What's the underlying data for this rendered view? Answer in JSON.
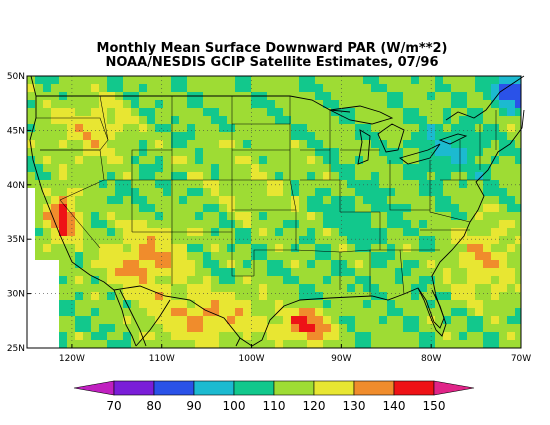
{
  "title": {
    "line1": "Monthly Mean Surface Downward PAR (W/m**2)",
    "line2": "NOAA/NESDIS GCIP Satellite Estimates, 07/96"
  },
  "map": {
    "lon_range": [
      -125,
      -70
    ],
    "lat_range": [
      25,
      50
    ],
    "lon_ticks": [
      {
        "value": -120,
        "label": "120W"
      },
      {
        "value": -110,
        "label": "110W"
      },
      {
        "value": -100,
        "label": "100W"
      },
      {
        "value": -90,
        "label": "90W"
      },
      {
        "value": -80,
        "label": "80W"
      },
      {
        "value": -70,
        "label": "70W"
      }
    ],
    "lat_ticks": [
      {
        "value": 25,
        "label": "25N"
      },
      {
        "value": 30,
        "label": "30N"
      },
      {
        "value": 35,
        "label": "35N"
      },
      {
        "value": 40,
        "label": "40N"
      },
      {
        "value": 45,
        "label": "45N"
      },
      {
        "value": 50,
        "label": "50N"
      }
    ],
    "grid": "dotted"
  },
  "colorbar": {
    "labels": [
      "70",
      "80",
      "90",
      "100",
      "110",
      "120",
      "130",
      "140",
      "150"
    ],
    "bins": [
      {
        "range": "<70",
        "color": "#c020c0"
      },
      {
        "range": "70-80",
        "color": "#7a1ed8"
      },
      {
        "range": "80-90",
        "color": "#2a52e8"
      },
      {
        "range": "90-100",
        "color": "#1cbad0"
      },
      {
        "range": "100-110",
        "color": "#12c88c"
      },
      {
        "range": "110-120",
        "color": "#9edc34"
      },
      {
        "range": "120-130",
        "color": "#e8e632"
      },
      {
        "range": "130-140",
        "color": "#f08c2c"
      },
      {
        "range": "140-150",
        "color": "#ee1216"
      },
      {
        "range": ">150",
        "color": "#e02488"
      }
    ]
  },
  "field_regions": [
    {
      "name": "background",
      "value": 112
    },
    {
      "name": "pacific-northwest",
      "value": 128
    },
    {
      "name": "southwest-desert",
      "value": 137
    },
    {
      "name": "central-valley-ca",
      "value": 145
    },
    {
      "name": "great-plains",
      "value": 118
    },
    {
      "name": "northeast",
      "value": 97
    },
    {
      "name": "northern-maine",
      "value": 78
    },
    {
      "name": "gulf-of-mexico",
      "value": 144
    },
    {
      "name": "mexico",
      "value": 133
    },
    {
      "name": "atlantic",
      "value": 130
    },
    {
      "name": "midwest",
      "value": 106
    }
  ]
}
